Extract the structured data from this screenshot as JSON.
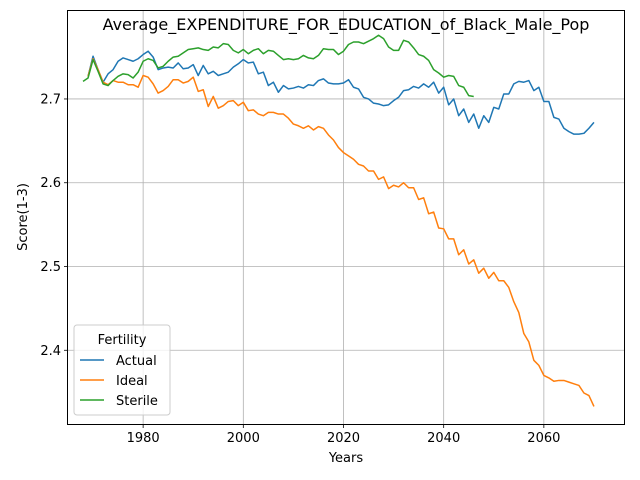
{
  "chart_data": {
    "type": "line",
    "title": "Average_EXPENDITURE_FOR_EDUCATION_of_Black_Male_Pop",
    "xlabel": "Years",
    "ylabel": "Score(1-3)",
    "xlim": [
      1965,
      2076
    ],
    "ylim": [
      2.312,
      2.805
    ],
    "xticks": [
      1980,
      2000,
      2020,
      2040,
      2060
    ],
    "yticks": [
      2.4,
      2.5,
      2.6,
      2.7
    ],
    "grid": true,
    "legend": {
      "title": "Fertility",
      "position": "lower-left"
    },
    "series": [
      {
        "name": "Actual",
        "color": "#1f77b4",
        "x": [
          1969,
          1970,
          1971,
          1972,
          1973,
          1974,
          1975,
          1976,
          1977,
          1978,
          1979,
          1980,
          1981,
          1982,
          1983,
          1984,
          1985,
          1986,
          1987,
          1988,
          1989,
          1990,
          1991,
          1992,
          1993,
          1994,
          1995,
          1996,
          1997,
          1998,
          1999,
          2000,
          2001,
          2002,
          2003,
          2004,
          2005,
          2006,
          2007,
          2008,
          2009,
          2010,
          2011,
          2012,
          2013,
          2014,
          2015,
          2016,
          2017,
          2018,
          2019,
          2020,
          2021,
          2022,
          2023,
          2024,
          2025,
          2026,
          2027,
          2028,
          2029,
          2030,
          2031,
          2032,
          2033,
          2034,
          2035,
          2036,
          2037,
          2038,
          2039,
          2040,
          2041,
          2042,
          2043,
          2044,
          2045,
          2046,
          2047,
          2048,
          2049,
          2050,
          2051,
          2052,
          2053,
          2054,
          2055,
          2056,
          2057,
          2058,
          2059,
          2060,
          2061,
          2062,
          2063,
          2064,
          2065,
          2066,
          2067,
          2068,
          2069,
          2070
        ],
        "values": [
          2.727,
          2.751,
          2.735,
          2.72,
          2.73,
          2.735,
          2.745,
          2.749,
          2.747,
          2.745,
          2.748,
          2.753,
          2.757,
          2.75,
          2.735,
          2.737,
          2.738,
          2.737,
          2.743,
          2.736,
          2.737,
          2.741,
          2.728,
          2.74,
          2.73,
          2.733,
          2.728,
          2.73,
          2.732,
          2.738,
          2.742,
          2.747,
          2.743,
          2.744,
          2.73,
          2.732,
          2.716,
          2.72,
          2.708,
          2.716,
          2.712,
          2.713,
          2.715,
          2.713,
          2.717,
          2.716,
          2.722,
          2.724,
          2.719,
          2.718,
          2.718,
          2.719,
          2.723,
          2.714,
          2.712,
          2.702,
          2.7,
          2.695,
          2.694,
          2.692,
          2.693,
          2.698,
          2.702,
          2.71,
          2.711,
          2.715,
          2.713,
          2.718,
          2.714,
          2.72,
          2.707,
          2.714,
          2.693,
          2.7,
          2.68,
          2.688,
          2.672,
          2.682,
          2.665,
          2.68,
          2.672,
          2.69,
          2.688,
          2.706,
          2.706,
          2.718,
          2.721,
          2.72,
          2.722,
          2.71,
          2.714,
          2.697,
          2.697,
          2.678,
          2.676,
          2.665,
          2.661,
          2.658,
          2.658,
          2.659,
          2.665,
          2.672
        ]
      },
      {
        "name": "Ideal",
        "color": "#ff7f0e",
        "x": [
          1969,
          1970,
          1971,
          1972,
          1973,
          1974,
          1975,
          1976,
          1977,
          1978,
          1979,
          1980,
          1981,
          1982,
          1983,
          1984,
          1985,
          1986,
          1987,
          1988,
          1989,
          1990,
          1991,
          1992,
          1993,
          1994,
          1995,
          1996,
          1997,
          1998,
          1999,
          2000,
          2001,
          2002,
          2003,
          2004,
          2005,
          2006,
          2007,
          2008,
          2009,
          2010,
          2011,
          2012,
          2013,
          2014,
          2015,
          2016,
          2017,
          2018,
          2019,
          2020,
          2021,
          2022,
          2023,
          2024,
          2025,
          2026,
          2027,
          2028,
          2029,
          2030,
          2031,
          2032,
          2033,
          2034,
          2035,
          2036,
          2037,
          2038,
          2039,
          2040,
          2041,
          2042,
          2043,
          2044,
          2045,
          2046,
          2047,
          2048,
          2049,
          2050,
          2051,
          2052,
          2053,
          2054,
          2055,
          2056,
          2057,
          2058,
          2059,
          2060,
          2061,
          2062,
          2063,
          2064,
          2065,
          2066,
          2067,
          2068,
          2069,
          2070
        ],
        "values": [
          2.727,
          2.748,
          2.735,
          2.72,
          2.717,
          2.722,
          2.72,
          2.72,
          2.717,
          2.717,
          2.714,
          2.728,
          2.726,
          2.718,
          2.707,
          2.71,
          2.715,
          2.723,
          2.723,
          2.719,
          2.721,
          2.726,
          2.709,
          2.711,
          2.691,
          2.703,
          2.689,
          2.692,
          2.697,
          2.698,
          2.692,
          2.696,
          2.686,
          2.687,
          2.682,
          2.68,
          2.684,
          2.684,
          2.682,
          2.682,
          2.677,
          2.67,
          2.668,
          2.665,
          2.668,
          2.663,
          2.667,
          2.665,
          2.657,
          2.651,
          2.642,
          2.636,
          2.632,
          2.628,
          2.622,
          2.62,
          2.614,
          2.614,
          2.604,
          2.607,
          2.593,
          2.597,
          2.595,
          2.6,
          2.594,
          2.594,
          2.58,
          2.582,
          2.563,
          2.565,
          2.546,
          2.545,
          2.533,
          2.533,
          2.514,
          2.52,
          2.503,
          2.508,
          2.492,
          2.498,
          2.486,
          2.493,
          2.483,
          2.483,
          2.475,
          2.458,
          2.445,
          2.42,
          2.41,
          2.388,
          2.382,
          2.37,
          2.367,
          2.363,
          2.364,
          2.364,
          2.362,
          2.36,
          2.358,
          2.349,
          2.346,
          2.333
        ]
      },
      {
        "name": "Sterile",
        "color": "#2ca02c",
        "x": [
          1968,
          1969,
          1970,
          1971,
          1972,
          1973,
          1974,
          1975,
          1976,
          1977,
          1978,
          1979,
          1980,
          1981,
          1982,
          1983,
          1984,
          1985,
          1986,
          1987,
          1988,
          1989,
          1990,
          1991,
          1992,
          1993,
          1994,
          1995,
          1996,
          1997,
          1998,
          1999,
          2000,
          2001,
          2002,
          2003,
          2004,
          2005,
          2006,
          2007,
          2008,
          2009,
          2010,
          2011,
          2012,
          2013,
          2014,
          2015,
          2016,
          2017,
          2018,
          2019,
          2020,
          2021,
          2022,
          2023,
          2024,
          2025,
          2026,
          2027,
          2028,
          2029,
          2030,
          2031,
          2032,
          2033,
          2034,
          2035,
          2036,
          2037,
          2038,
          2039,
          2040,
          2041,
          2042,
          2043,
          2044,
          2045,
          2046
        ],
        "values": [
          2.721,
          2.725,
          2.747,
          2.733,
          2.718,
          2.716,
          2.722,
          2.727,
          2.73,
          2.729,
          2.725,
          2.732,
          2.745,
          2.748,
          2.746,
          2.737,
          2.739,
          2.745,
          2.75,
          2.751,
          2.755,
          2.759,
          2.76,
          2.761,
          2.759,
          2.758,
          2.762,
          2.761,
          2.766,
          2.765,
          2.758,
          2.755,
          2.759,
          2.754,
          2.758,
          2.76,
          2.754,
          2.758,
          2.757,
          2.752,
          2.747,
          2.748,
          2.747,
          2.748,
          2.752,
          2.749,
          2.748,
          2.752,
          2.76,
          2.759,
          2.759,
          2.753,
          2.757,
          2.765,
          2.768,
          2.768,
          2.766,
          2.769,
          2.772,
          2.776,
          2.772,
          2.762,
          2.758,
          2.758,
          2.77,
          2.768,
          2.761,
          2.753,
          2.751,
          2.746,
          2.735,
          2.731,
          2.726,
          2.728,
          2.727,
          2.716,
          2.714,
          2.704,
          2.703
        ]
      }
    ]
  }
}
